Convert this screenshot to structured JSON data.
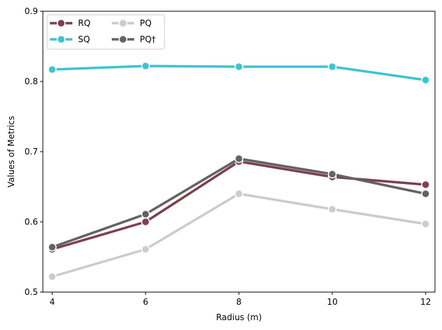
{
  "chart_data": {
    "type": "line",
    "title": "",
    "xlabel": "Radius (m)",
    "ylabel": "Values of Metrics",
    "x": [
      4,
      6,
      8,
      10,
      12
    ],
    "x_tick_labels": [
      "4",
      "6",
      "8",
      "10",
      "12"
    ],
    "xlim": [
      3.8,
      12.2
    ],
    "ylim": [
      0.5,
      0.9
    ],
    "y_ticks": [
      0.5,
      0.6,
      0.7,
      0.8,
      0.9
    ],
    "y_tick_labels": [
      "0.5",
      "0.6",
      "0.7",
      "0.8",
      "0.9"
    ],
    "grid": false,
    "legend_position": "top-left",
    "series": [
      {
        "name": "RQ",
        "color": "#7f3f4d",
        "values": [
          0.561,
          0.6,
          0.686,
          0.664,
          0.653
        ]
      },
      {
        "name": "SQ",
        "color": "#3fc3d1",
        "values": [
          0.817,
          0.822,
          0.821,
          0.821,
          0.802
        ]
      },
      {
        "name": "PQ",
        "color": "#cccccc",
        "values": [
          0.522,
          0.561,
          0.64,
          0.618,
          0.597
        ]
      },
      {
        "name": "PQ†",
        "color": "#636363",
        "values": [
          0.564,
          0.611,
          0.69,
          0.668,
          0.64
        ]
      }
    ]
  }
}
